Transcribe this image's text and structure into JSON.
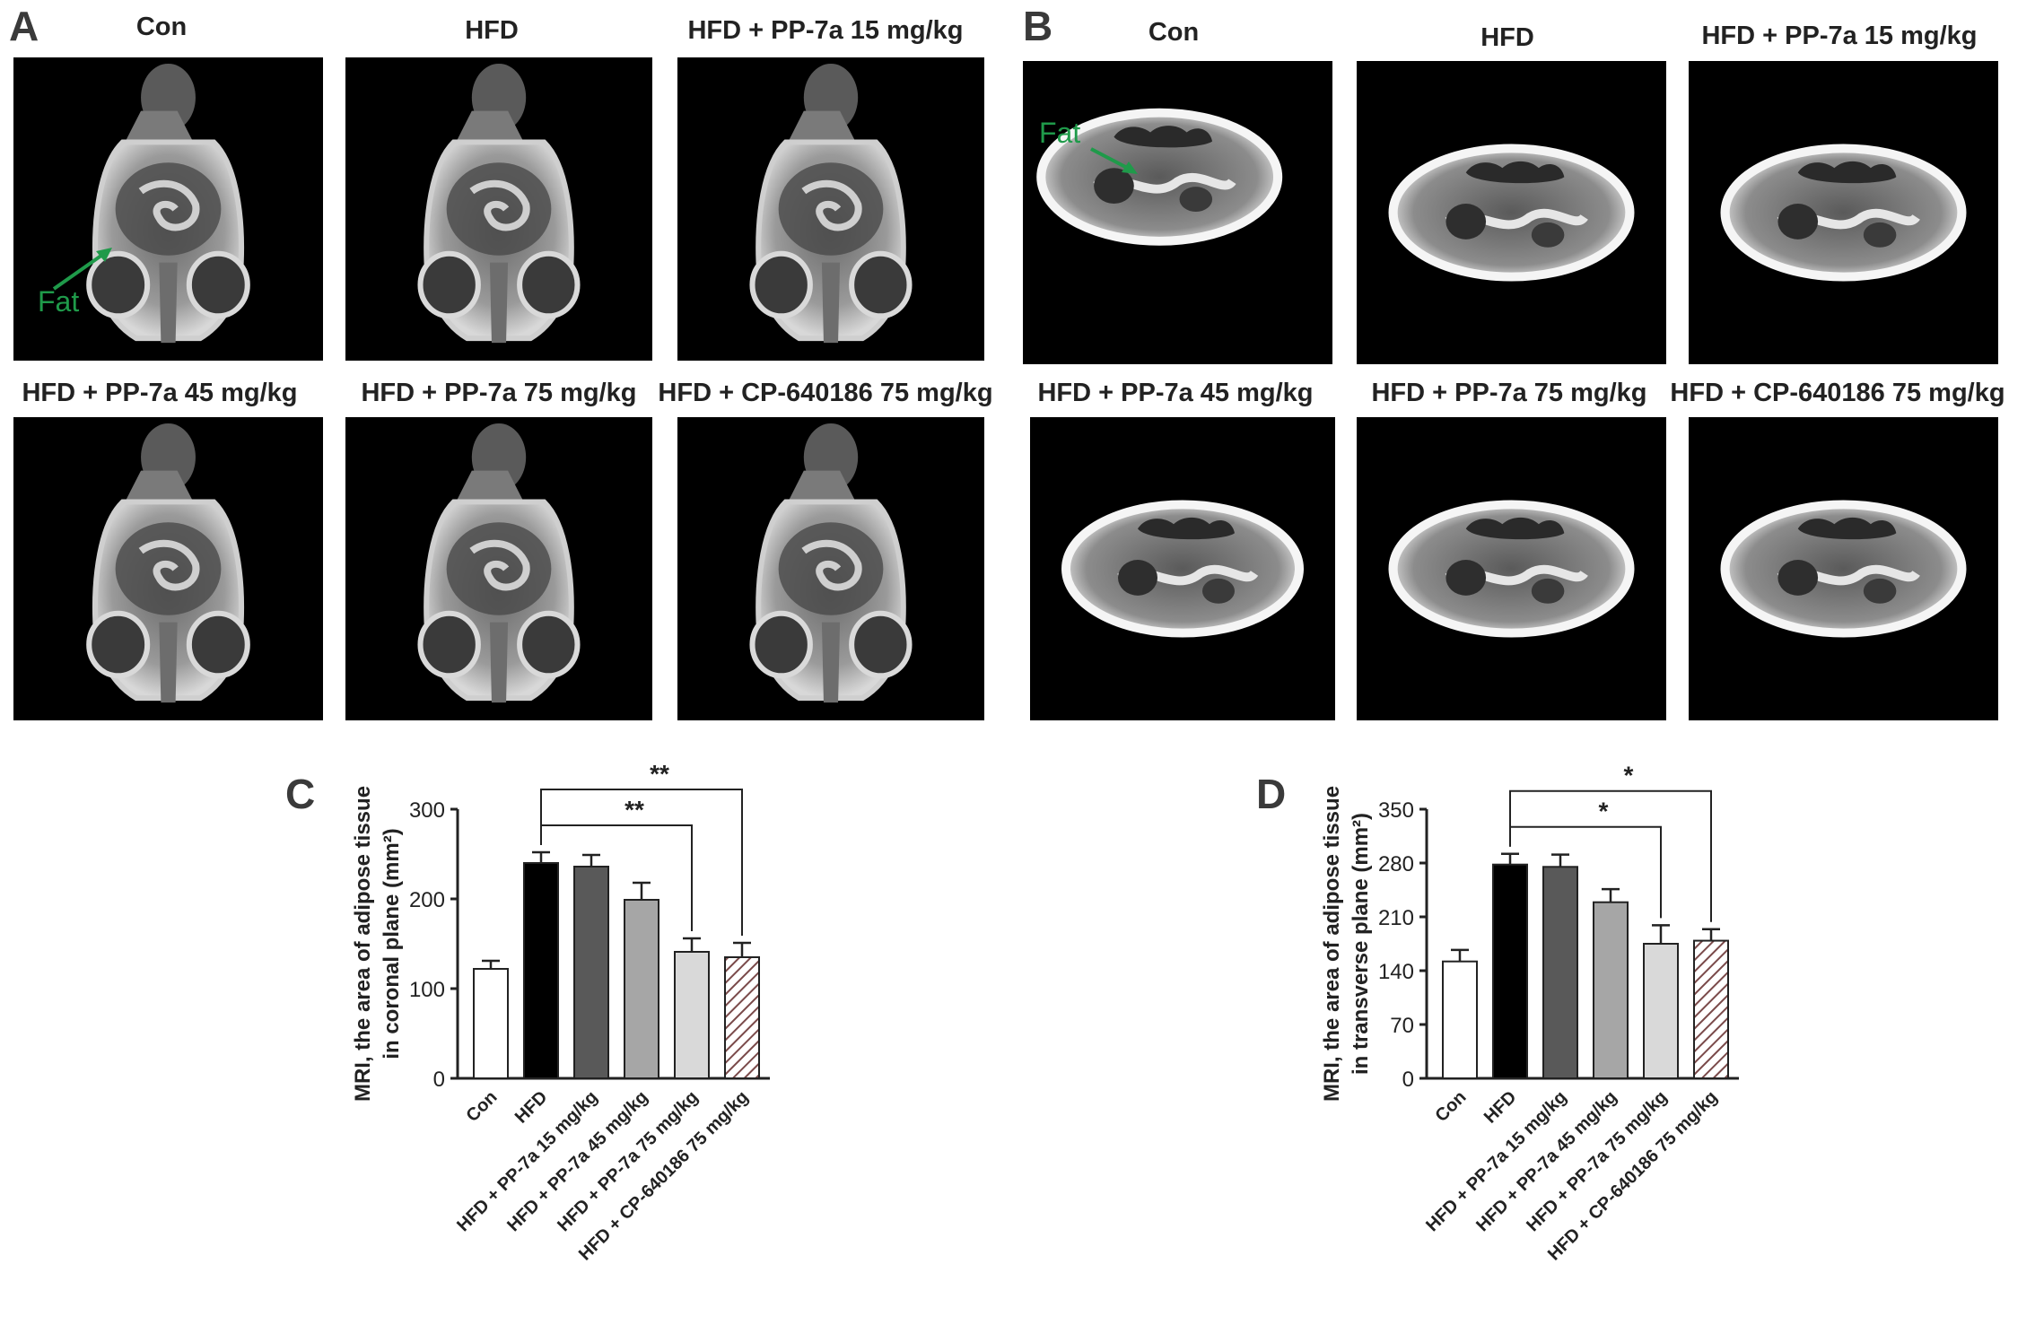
{
  "panel_letters": {
    "a": "A",
    "b": "B",
    "c": "C",
    "d": "D"
  },
  "panel_a": {
    "titles": [
      "Con",
      "HFD",
      "HFD + PP-7a 15 mg/kg",
      "HFD + PP-7a 45 mg/kg",
      "HFD + PP-7a 75 mg/kg",
      "HFD + CP-640186 75 mg/kg"
    ],
    "fat_label": "Fat"
  },
  "panel_b": {
    "titles": [
      "Con",
      "HFD",
      "HFD + PP-7a 15 mg/kg",
      "HFD + PP-7a 45 mg/kg",
      "HFD + PP-7a 75 mg/kg",
      "HFD + CP-640186 75 mg/kg"
    ],
    "fat_label": "Fat"
  },
  "colors": {
    "fat_annotation": "#1f9a4a",
    "black_bar": "#000000",
    "dark_gray_bar": "#595959",
    "mid_gray_bar": "#a6a6a6",
    "light_gray_bar": "#d9d9d9",
    "hatch": "#7a4a4a"
  },
  "chart_data": [
    {
      "type": "bar",
      "panel": "C",
      "categories": [
        "Con",
        "HFD",
        "HFD + PP-7a 15 mg/kg",
        "HFD + PP-7a 45 mg/kg",
        "HFD + PP-7a 75 mg/kg",
        "HFD + CP-640186 75 mg/kg"
      ],
      "values": [
        122,
        240,
        236,
        199,
        141,
        135
      ],
      "errors": [
        9,
        12,
        13,
        19,
        15,
        16
      ],
      "ylabel_line1": "MRI, the area of adipose tissue",
      "ylabel_line2": "in coronal plane (mm²)",
      "ylim": [
        0,
        300
      ],
      "yticks": [
        0,
        100,
        200,
        300
      ],
      "significance": [
        {
          "from": 1,
          "to": 4,
          "label": "**"
        },
        {
          "from": 1,
          "to": 5,
          "label": "**"
        }
      ],
      "bar_fills": [
        "white",
        "black",
        "dark-gray",
        "mid-gray",
        "light-gray",
        "hatched"
      ]
    },
    {
      "type": "bar",
      "panel": "D",
      "categories": [
        "Con",
        "HFD",
        "HFD + PP-7a 15 mg/kg",
        "HFD + PP-7a 45 mg/kg",
        "HFD + PP-7a 75 mg/kg",
        "HFD + CP-640186 75 mg/kg"
      ],
      "values": [
        152,
        278,
        275,
        229,
        175,
        179
      ],
      "errors": [
        15,
        14,
        16,
        17,
        24,
        15
      ],
      "ylabel_line1": "MRI, the area of adipose tissue",
      "ylabel_line2": "in transverse plane (mm²)",
      "ylim": [
        0,
        350
      ],
      "yticks": [
        0,
        70,
        140,
        210,
        280,
        350
      ],
      "significance": [
        {
          "from": 1,
          "to": 4,
          "label": "*"
        },
        {
          "from": 1,
          "to": 5,
          "label": "*"
        }
      ],
      "bar_fills": [
        "white",
        "black",
        "dark-gray",
        "mid-gray",
        "light-gray",
        "hatched"
      ]
    }
  ]
}
